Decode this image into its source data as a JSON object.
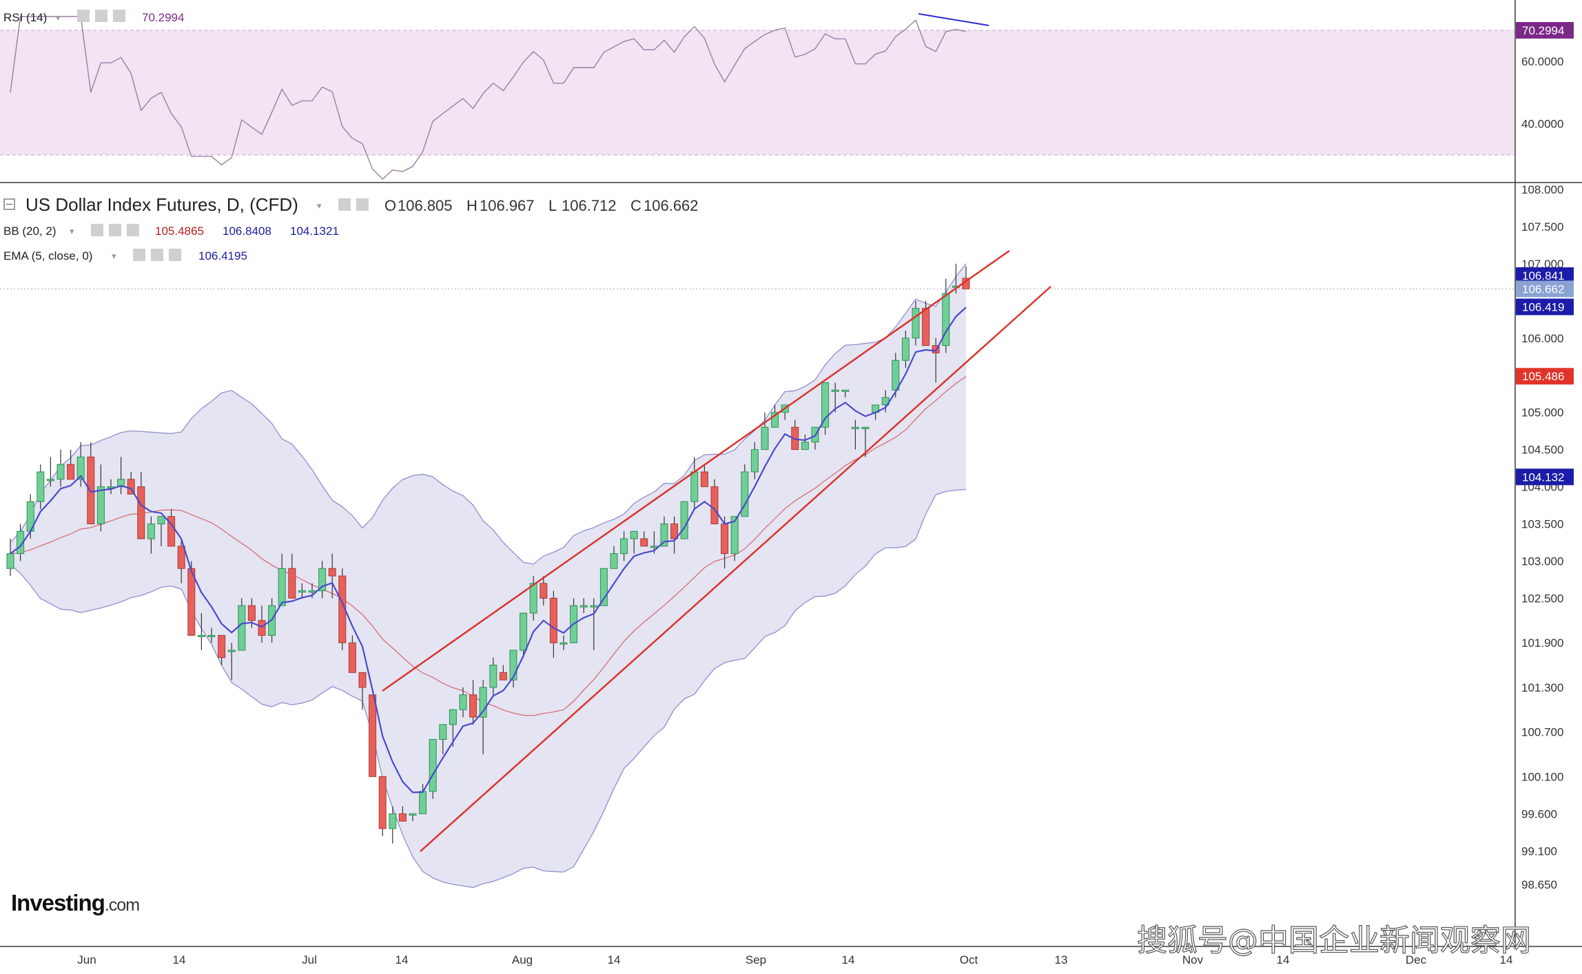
{
  "rsi_panel": {
    "name": "RSI (14)",
    "value": "70.2994",
    "axis": [
      "60.0000",
      "40.0000"
    ],
    "badge": "70.2994"
  },
  "main_panel": {
    "title": "US Dollar Index Futures, D, (CFD)",
    "ohlc": [
      {
        "key": "O",
        "value": "106.805"
      },
      {
        "key": "H",
        "value": "106.967"
      },
      {
        "key": "L",
        "value": "106.712"
      },
      {
        "key": "C",
        "value": "106.662"
      }
    ],
    "bb": {
      "name": "BB (20, 2)",
      "middle": "105.4865",
      "upper": "106.8408",
      "lower": "104.1321"
    },
    "ema": {
      "name": "EMA (5, close, 0)",
      "value": "106.4195"
    },
    "badges": {
      "upper": "106.841",
      "close": "106.662",
      "ema": "106.419",
      "middle": "105.486",
      "lower": "104.132"
    }
  },
  "price_axis": [
    "108.000",
    "107.500",
    "107.000",
    "106.000",
    "105.000",
    "104.500",
    "104.000",
    "103.500",
    "103.000",
    "102.500",
    "101.900",
    "101.300",
    "100.700",
    "100.100",
    "99.600",
    "99.100",
    "98.650"
  ],
  "time_axis": [
    "Jun",
    "14",
    "Jul",
    "14",
    "Aug",
    "14",
    "Sep",
    "14",
    "Oct",
    "13",
    "Nov",
    "14",
    "Dec",
    "14"
  ],
  "brand": {
    "name": "Investing",
    "suffix": ".com"
  },
  "watermark": "搜狐号@中国企业新闻观察网",
  "colors": {
    "up": "#6fcf97",
    "down": "#e8605a",
    "ema": "#4a4acb",
    "bb_band": "#e4e4f3",
    "bb_mid": "#d9646a",
    "rsi_fill": "#f2e4f3",
    "channel": "#d9342b"
  },
  "chart_data": {
    "type": "candlestick",
    "title": "US Dollar Index Futures, D, (CFD)",
    "ylim": [
      98.4,
      108.1
    ],
    "x_ticks": [
      "Jun",
      "14",
      "Jul",
      "14",
      "Aug",
      "14",
      "Sep",
      "14",
      "Oct",
      "13",
      "Nov",
      "14",
      "Dec",
      "14"
    ],
    "candles": [
      {
        "o": 102.9,
        "h": 103.3,
        "l": 102.8,
        "c": 103.1
      },
      {
        "o": 103.1,
        "h": 103.5,
        "l": 103.0,
        "c": 103.4
      },
      {
        "o": 103.4,
        "h": 103.9,
        "l": 103.3,
        "c": 103.8
      },
      {
        "o": 103.8,
        "h": 104.3,
        "l": 103.7,
        "c": 104.2
      },
      {
        "o": 104.1,
        "h": 104.4,
        "l": 104.0,
        "c": 104.1
      },
      {
        "o": 104.1,
        "h": 104.5,
        "l": 104.0,
        "c": 104.3
      },
      {
        "o": 104.3,
        "h": 104.5,
        "l": 104.1,
        "c": 104.1
      },
      {
        "o": 104.1,
        "h": 104.6,
        "l": 104.0,
        "c": 104.4
      },
      {
        "o": 104.4,
        "h": 104.6,
        "l": 103.5,
        "c": 103.5
      },
      {
        "o": 103.5,
        "h": 104.3,
        "l": 103.4,
        "c": 104.0
      },
      {
        "o": 104.0,
        "h": 104.1,
        "l": 103.9,
        "c": 104.0
      },
      {
        "o": 104.0,
        "h": 104.4,
        "l": 103.9,
        "c": 104.1
      },
      {
        "o": 104.1,
        "h": 104.2,
        "l": 103.9,
        "c": 103.9
      },
      {
        "o": 104.0,
        "h": 104.2,
        "l": 103.3,
        "c": 103.3
      },
      {
        "o": 103.3,
        "h": 103.6,
        "l": 103.1,
        "c": 103.5
      },
      {
        "o": 103.5,
        "h": 103.6,
        "l": 103.2,
        "c": 103.6
      },
      {
        "o": 103.6,
        "h": 103.7,
        "l": 103.2,
        "c": 103.2
      },
      {
        "o": 103.2,
        "h": 103.3,
        "l": 102.7,
        "c": 102.9
      },
      {
        "o": 102.9,
        "h": 103.0,
        "l": 102.0,
        "c": 102.0
      },
      {
        "o": 102.0,
        "h": 102.3,
        "l": 101.8,
        "c": 102.0
      },
      {
        "o": 102.0,
        "h": 102.1,
        "l": 101.9,
        "c": 102.0
      },
      {
        "o": 102.0,
        "h": 102.0,
        "l": 101.6,
        "c": 101.7
      },
      {
        "o": 101.8,
        "h": 101.9,
        "l": 101.4,
        "c": 101.8
      },
      {
        "o": 101.8,
        "h": 102.5,
        "l": 101.8,
        "c": 102.4
      },
      {
        "o": 102.4,
        "h": 102.5,
        "l": 102.1,
        "c": 102.2
      },
      {
        "o": 102.2,
        "h": 102.4,
        "l": 101.9,
        "c": 102.0
      },
      {
        "o": 102.0,
        "h": 102.5,
        "l": 101.9,
        "c": 102.4
      },
      {
        "o": 102.4,
        "h": 103.1,
        "l": 102.4,
        "c": 102.9
      },
      {
        "o": 102.9,
        "h": 103.1,
        "l": 102.5,
        "c": 102.5
      },
      {
        "o": 102.6,
        "h": 102.7,
        "l": 102.5,
        "c": 102.6
      },
      {
        "o": 102.6,
        "h": 102.7,
        "l": 102.5,
        "c": 102.6
      },
      {
        "o": 102.6,
        "h": 103.0,
        "l": 102.5,
        "c": 102.9
      },
      {
        "o": 102.9,
        "h": 103.1,
        "l": 102.5,
        "c": 102.8
      },
      {
        "o": 102.8,
        "h": 102.9,
        "l": 101.8,
        "c": 101.9
      },
      {
        "o": 101.9,
        "h": 102.0,
        "l": 101.5,
        "c": 101.5
      },
      {
        "o": 101.5,
        "h": 101.5,
        "l": 101.0,
        "c": 101.3
      },
      {
        "o": 101.2,
        "h": 101.2,
        "l": 100.1,
        "c": 100.1
      },
      {
        "o": 100.1,
        "h": 100.1,
        "l": 99.3,
        "c": 99.4
      },
      {
        "o": 99.4,
        "h": 99.7,
        "l": 99.2,
        "c": 99.6
      },
      {
        "o": 99.6,
        "h": 99.7,
        "l": 99.5,
        "c": 99.5
      },
      {
        "o": 99.6,
        "h": 99.6,
        "l": 99.5,
        "c": 99.6
      },
      {
        "o": 99.6,
        "h": 100.0,
        "l": 99.6,
        "c": 99.9
      },
      {
        "o": 99.9,
        "h": 100.6,
        "l": 99.8,
        "c": 100.6
      },
      {
        "o": 100.6,
        "h": 100.8,
        "l": 100.4,
        "c": 100.8
      },
      {
        "o": 100.8,
        "h": 101.0,
        "l": 100.5,
        "c": 101.0
      },
      {
        "o": 101.0,
        "h": 101.3,
        "l": 100.9,
        "c": 101.2
      },
      {
        "o": 101.2,
        "h": 101.4,
        "l": 100.8,
        "c": 100.9
      },
      {
        "o": 100.9,
        "h": 101.4,
        "l": 100.4,
        "c": 101.3
      },
      {
        "o": 101.3,
        "h": 101.7,
        "l": 101.2,
        "c": 101.6
      },
      {
        "o": 101.5,
        "h": 101.6,
        "l": 101.4,
        "c": 101.4
      },
      {
        "o": 101.4,
        "h": 101.8,
        "l": 101.3,
        "c": 101.8
      },
      {
        "o": 101.8,
        "h": 102.3,
        "l": 101.7,
        "c": 102.3
      },
      {
        "o": 102.3,
        "h": 102.8,
        "l": 102.2,
        "c": 102.7
      },
      {
        "o": 102.7,
        "h": 102.8,
        "l": 102.4,
        "c": 102.5
      },
      {
        "o": 102.5,
        "h": 102.6,
        "l": 101.7,
        "c": 101.9
      },
      {
        "o": 101.9,
        "h": 102.0,
        "l": 101.8,
        "c": 101.9
      },
      {
        "o": 101.9,
        "h": 102.5,
        "l": 101.9,
        "c": 102.4
      },
      {
        "o": 102.4,
        "h": 102.5,
        "l": 102.3,
        "c": 102.4
      },
      {
        "o": 102.4,
        "h": 102.5,
        "l": 101.8,
        "c": 102.4
      },
      {
        "o": 102.4,
        "h": 102.9,
        "l": 102.4,
        "c": 102.9
      },
      {
        "o": 102.9,
        "h": 103.2,
        "l": 102.9,
        "c": 103.1
      },
      {
        "o": 103.1,
        "h": 103.4,
        "l": 103.0,
        "c": 103.3
      },
      {
        "o": 103.3,
        "h": 103.4,
        "l": 103.1,
        "c": 103.4
      },
      {
        "o": 103.3,
        "h": 103.4,
        "l": 103.2,
        "c": 103.2
      },
      {
        "o": 103.2,
        "h": 103.4,
        "l": 103.1,
        "c": 103.2
      },
      {
        "o": 103.2,
        "h": 103.6,
        "l": 103.2,
        "c": 103.5
      },
      {
        "o": 103.5,
        "h": 103.6,
        "l": 103.1,
        "c": 103.3
      },
      {
        "o": 103.3,
        "h": 103.8,
        "l": 103.3,
        "c": 103.8
      },
      {
        "o": 103.8,
        "h": 104.4,
        "l": 103.7,
        "c": 104.2
      },
      {
        "o": 104.2,
        "h": 104.3,
        "l": 104.0,
        "c": 104.0
      },
      {
        "o": 104.0,
        "h": 104.1,
        "l": 103.5,
        "c": 103.5
      },
      {
        "o": 103.5,
        "h": 103.6,
        "l": 102.9,
        "c": 103.1
      },
      {
        "o": 103.1,
        "h": 103.6,
        "l": 103.0,
        "c": 103.6
      },
      {
        "o": 103.6,
        "h": 104.3,
        "l": 103.6,
        "c": 104.2
      },
      {
        "o": 104.2,
        "h": 104.6,
        "l": 104.1,
        "c": 104.5
      },
      {
        "o": 104.5,
        "h": 105.0,
        "l": 104.5,
        "c": 104.8
      },
      {
        "o": 104.8,
        "h": 105.1,
        "l": 104.8,
        "c": 105.0
      },
      {
        "o": 105.0,
        "h": 105.1,
        "l": 104.9,
        "c": 105.1
      },
      {
        "o": 104.8,
        "h": 104.9,
        "l": 104.5,
        "c": 104.5
      },
      {
        "o": 104.5,
        "h": 104.7,
        "l": 104.5,
        "c": 104.6
      },
      {
        "o": 104.6,
        "h": 104.8,
        "l": 104.5,
        "c": 104.8
      },
      {
        "o": 104.8,
        "h": 105.4,
        "l": 104.7,
        "c": 105.4
      },
      {
        "o": 105.3,
        "h": 105.4,
        "l": 105.0,
        "c": 105.3
      },
      {
        "o": 105.3,
        "h": 105.3,
        "l": 105.2,
        "c": 105.3
      },
      {
        "o": 104.8,
        "h": 104.9,
        "l": 104.5,
        "c": 104.8
      },
      {
        "o": 104.8,
        "h": 104.8,
        "l": 104.4,
        "c": 104.8
      },
      {
        "o": 105.0,
        "h": 105.1,
        "l": 104.9,
        "c": 105.1
      },
      {
        "o": 105.1,
        "h": 105.3,
        "l": 105.0,
        "c": 105.2
      },
      {
        "o": 105.3,
        "h": 105.8,
        "l": 105.2,
        "c": 105.7
      },
      {
        "o": 105.7,
        "h": 106.1,
        "l": 105.6,
        "c": 106.0
      },
      {
        "o": 106.0,
        "h": 106.5,
        "l": 105.9,
        "c": 106.4
      },
      {
        "o": 106.4,
        "h": 106.5,
        "l": 105.9,
        "c": 105.9
      },
      {
        "o": 105.9,
        "h": 106.0,
        "l": 105.4,
        "c": 105.8
      },
      {
        "o": 105.9,
        "h": 106.8,
        "l": 105.8,
        "c": 106.6
      },
      {
        "o": 106.7,
        "h": 107.0,
        "l": 106.6,
        "c": 106.7
      },
      {
        "o": 106.805,
        "h": 106.967,
        "l": 106.712,
        "c": 106.662
      }
    ],
    "ema5_last": 106.4195,
    "bollinger_last": {
      "upper": 106.8408,
      "middle": 105.4865,
      "lower": 104.1321
    },
    "rsi_last": 70.2994,
    "rsi_levels": [
      70,
      30
    ],
    "channel_lines": "ascending channel drawn by author in red"
  }
}
